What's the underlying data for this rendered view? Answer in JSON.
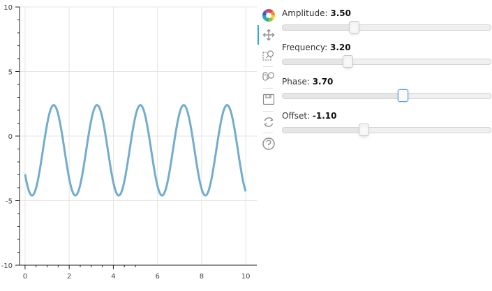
{
  "chart_data": {
    "type": "line",
    "title": "",
    "xlabel": "",
    "ylabel": "",
    "xlim": [
      -0.25,
      10.5
    ],
    "ylim": [
      -10,
      10
    ],
    "x_ticks": [
      0,
      2,
      4,
      6,
      8,
      10
    ],
    "y_ticks": [
      -10,
      -5,
      0,
      5,
      10
    ],
    "grid": true,
    "line_color": "#6aa8cc",
    "series": [
      {
        "function": "offset + amplitude * sin(frequency * x + phase)",
        "x_range": [
          0,
          10
        ],
        "amplitude": 3.5,
        "frequency": 3.2,
        "phase": 3.7,
        "offset": -1.1
      }
    ]
  },
  "toolbar": {
    "tools": [
      {
        "name": "bokeh-logo-icon",
        "active": false
      },
      {
        "name": "pan-icon",
        "active": true
      },
      {
        "name": "box-zoom-icon",
        "active": false
      },
      {
        "name": "wheel-zoom-icon",
        "active": false
      },
      {
        "name": "save-icon",
        "active": false
      },
      {
        "name": "reset-icon",
        "active": false
      },
      {
        "name": "help-icon",
        "active": false
      }
    ]
  },
  "sliders": [
    {
      "key": "amplitude",
      "label": "Amplitude: ",
      "value_text": "3.50",
      "value": 3.5,
      "start": 0.1,
      "end": 10,
      "active": false
    },
    {
      "key": "frequency",
      "label": "Frequency: ",
      "value_text": "3.20",
      "value": 3.2,
      "start": 0.1,
      "end": 10,
      "active": false
    },
    {
      "key": "phase",
      "label": "Phase: ",
      "value_text": "3.70",
      "value": 3.7,
      "start": 0,
      "end": 6.4,
      "active": true
    },
    {
      "key": "offset",
      "label": "Offset: ",
      "value_text": "-1.10",
      "value": -1.1,
      "start": -5,
      "end": 5,
      "active": false
    }
  ]
}
